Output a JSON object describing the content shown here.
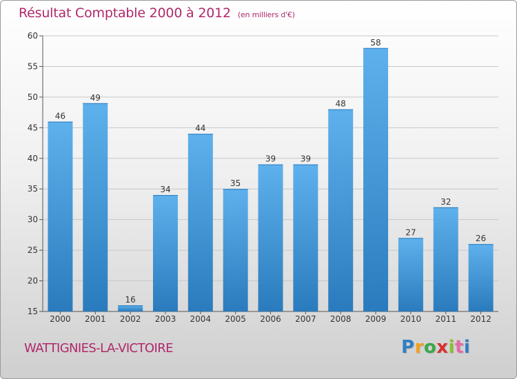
{
  "chart_data": {
    "type": "bar",
    "title": "Résultat Comptable 2000 à 2012",
    "subtitle": "(en milliers d'€)",
    "categories": [
      "2000",
      "2001",
      "2002",
      "2003",
      "2004",
      "2005",
      "2006",
      "2007",
      "2008",
      "2009",
      "2010",
      "2011",
      "2012"
    ],
    "values": [
      46,
      49,
      16,
      34,
      44,
      35,
      39,
      39,
      48,
      58,
      27,
      32,
      26
    ],
    "ylim": [
      15,
      60
    ],
    "yticks": [
      15,
      20,
      25,
      30,
      35,
      40,
      45,
      50,
      55,
      60
    ],
    "grid": true,
    "xlabel": "",
    "ylabel": ""
  },
  "footer": {
    "commune": "WATTIGNIES-LA-VICTOIRE",
    "logo_letters": [
      "P",
      "r",
      "o",
      "x",
      "i",
      "t",
      "i"
    ]
  },
  "colors": {
    "title": "#b0286a",
    "bar_light": "#5eb1ec",
    "bar_dark": "#2a7bbd",
    "grid": "#c8c8c8"
  }
}
